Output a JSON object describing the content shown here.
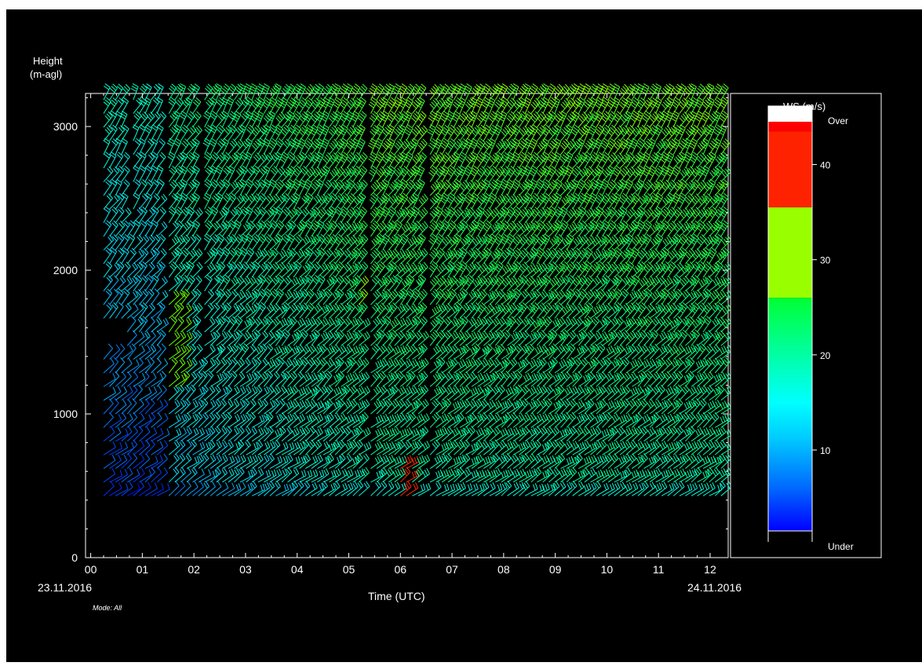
{
  "chart_data": {
    "type": "wind-barb",
    "ylabel_line1": "Height",
    "ylabel_line2": "(m-agl)",
    "xlabel": "Time (UTC)",
    "start_date": "23.11.2016",
    "end_date": "24.11.2016",
    "mode_label": "Mode: All",
    "x_ticks": [
      "00",
      "01",
      "02",
      "03",
      "04",
      "05",
      "06",
      "07",
      "08",
      "09",
      "10",
      "11",
      "12"
    ],
    "xlim": [
      -0.1,
      12.35
    ],
    "y_ticks": [
      "0",
      "1000",
      "2000",
      "3000"
    ],
    "y_tick_values": [
      0,
      1000,
      2000,
      3000
    ],
    "ylim": [
      0,
      3230
    ],
    "data_height_range": [
      430,
      3200
    ],
    "data_time_range": [
      0.25,
      12.3
    ],
    "data_gaps": [
      {
        "from": 0.65,
        "to": 0.8,
        "above": 2300
      },
      {
        "from": 1.4,
        "to": 1.5,
        "above": 400
      },
      {
        "from": 2.0,
        "to": 2.12,
        "above": 1300
      },
      {
        "from": 5.25,
        "to": 5.35,
        "above": 400
      },
      {
        "from": 6.4,
        "to": 6.52,
        "above": 400
      }
    ],
    "colorbar": {
      "title": "WS (m/s)",
      "over_label": "Over",
      "under_label": "Under",
      "ticks": [
        "10",
        "20",
        "30",
        "40"
      ],
      "tick_values": [
        10,
        20,
        30,
        40
      ],
      "range": [
        1.5,
        44.5
      ],
      "over_color": "#ffffff",
      "segments": [
        {
          "from": 1.5,
          "to": 26,
          "gradient": [
            "#0000ff",
            "#0066ff",
            "#00ccff",
            "#00ffff",
            "#00ff99",
            "#00ff33"
          ]
        },
        {
          "from": 26,
          "to": 35.5,
          "color": "#99ff00"
        },
        {
          "from": 35.5,
          "to": 43.5,
          "color": "#ff2200"
        },
        {
          "from": 43.5,
          "to": 44.5,
          "color": "#ff0000"
        }
      ]
    }
  }
}
